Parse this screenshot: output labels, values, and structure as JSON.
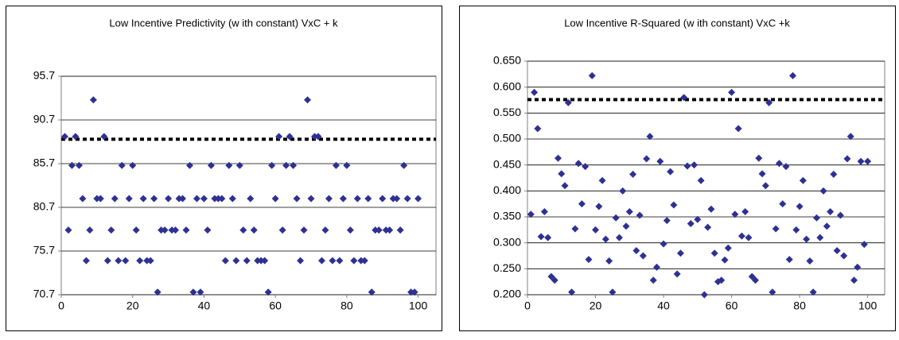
{
  "chart_data": [
    {
      "type": "scatter",
      "title": "Low  Incentive Predictivity (w ith constant) VxC + k",
      "color": "#2e3192",
      "reference_line": 88.5,
      "reference_color": "#000000",
      "grid": true,
      "xlim": [
        0,
        105
      ],
      "xticks": [
        0,
        20,
        40,
        60,
        80,
        100
      ],
      "ylim": [
        70.7,
        95.7
      ],
      "yticks": [
        70.7,
        75.7,
        80.7,
        85.7,
        90.7,
        95.7
      ],
      "x": [
        1,
        2,
        3,
        4,
        5,
        6,
        7,
        8,
        9,
        10,
        11,
        12,
        13,
        14,
        15,
        16,
        17,
        18,
        19,
        20,
        21,
        22,
        23,
        24,
        25,
        26,
        27,
        28,
        29,
        30,
        31,
        32,
        33,
        34,
        35,
        36,
        37,
        38,
        39,
        40,
        41,
        42,
        43,
        44,
        45,
        46,
        47,
        48,
        49,
        50,
        51,
        52,
        53,
        54,
        55,
        56,
        57,
        58,
        59,
        60,
        61,
        62,
        63,
        64,
        65,
        66,
        67,
        68,
        69,
        70,
        71,
        72,
        73,
        74,
        75,
        76,
        77,
        78,
        79,
        80,
        81,
        82,
        83,
        84,
        85,
        86,
        87,
        88,
        89,
        90,
        91,
        92,
        93,
        94,
        95,
        96,
        97,
        98,
        99,
        100
      ],
      "values": [
        88.8,
        78.1,
        85.5,
        88.8,
        85.5,
        81.7,
        74.6,
        78.1,
        93.0,
        81.7,
        81.7,
        88.8,
        74.6,
        78.1,
        81.7,
        74.6,
        85.5,
        74.6,
        81.7,
        85.5,
        78.1,
        74.6,
        81.7,
        74.6,
        74.6,
        81.7,
        71.0,
        78.1,
        78.1,
        81.7,
        78.1,
        78.1,
        81.7,
        81.7,
        78.1,
        85.5,
        71.0,
        81.7,
        71.0,
        81.7,
        78.1,
        85.5,
        81.7,
        81.7,
        81.7,
        74.6,
        85.5,
        81.7,
        74.6,
        85.5,
        78.1,
        74.6,
        81.7,
        78.1,
        74.6,
        74.6,
        74.6,
        71.0,
        85.5,
        81.7,
        88.8,
        78.1,
        85.5,
        88.8,
        85.5,
        81.7,
        74.6,
        78.1,
        93.0,
        81.7,
        88.8,
        88.8,
        74.6,
        78.1,
        81.7,
        74.6,
        85.5,
        74.6,
        81.7,
        85.5,
        78.1,
        74.6,
        81.7,
        74.6,
        74.6,
        81.7,
        71.0,
        78.1,
        78.1,
        81.7,
        78.1,
        78.1,
        81.7,
        81.7,
        78.1,
        85.5,
        81.7,
        71.0,
        71.0,
        81.7
      ]
    },
    {
      "type": "scatter",
      "title": "Low  Incentive R-Squared (w ith constant) VxC +k",
      "color": "#2e3192",
      "reference_line": 0.576,
      "reference_color": "#000000",
      "grid": true,
      "xlim": [
        0,
        105
      ],
      "xticks": [
        0,
        20,
        40,
        60,
        80,
        100
      ],
      "ylim": [
        0.2,
        0.65
      ],
      "yticks": [
        {
          "value": 0.2,
          "label": "0.200"
        },
        {
          "value": 0.25,
          "label": "0.250"
        },
        {
          "value": 0.3,
          "label": "0.300"
        },
        {
          "value": 0.35,
          "label": "0.350"
        },
        {
          "value": 0.4,
          "label": "0.400"
        },
        {
          "value": 0.45,
          "label": "0.450"
        },
        {
          "value": 0.5,
          "label": "0.500"
        },
        {
          "value": 0.55,
          "label": "0.550"
        },
        {
          "value": 0.6,
          "label": "0.600"
        },
        {
          "value": 0.65,
          "label": "0.650"
        }
      ],
      "x": [
        1,
        2,
        3,
        4,
        5,
        6,
        7,
        8,
        9,
        10,
        11,
        12,
        13,
        14,
        15,
        16,
        17,
        18,
        19,
        20,
        21,
        22,
        23,
        24,
        25,
        26,
        27,
        28,
        29,
        30,
        31,
        32,
        33,
        34,
        35,
        36,
        37,
        38,
        39,
        40,
        41,
        42,
        43,
        44,
        45,
        46,
        47,
        48,
        49,
        50,
        51,
        52,
        53,
        54,
        55,
        56,
        57,
        58,
        59,
        60,
        61,
        62,
        63,
        64,
        65,
        66,
        67,
        68,
        69,
        70,
        71,
        72,
        73,
        74,
        75,
        76,
        77,
        78,
        79,
        80,
        81,
        82,
        83,
        84,
        85,
        86,
        87,
        88,
        89,
        90,
        91,
        92,
        93,
        94,
        95,
        96,
        97,
        98,
        99,
        100
      ],
      "values": [
        0.355,
        0.59,
        0.52,
        0.312,
        0.36,
        0.31,
        0.235,
        0.228,
        0.463,
        0.433,
        0.41,
        0.57,
        0.205,
        0.327,
        0.453,
        0.375,
        0.447,
        0.268,
        0.622,
        0.325,
        0.37,
        0.42,
        0.307,
        0.265,
        0.205,
        0.348,
        0.31,
        0.4,
        0.332,
        0.36,
        0.432,
        0.285,
        0.353,
        0.275,
        0.462,
        0.505,
        0.228,
        0.253,
        0.457,
        0.298,
        0.343,
        0.437,
        0.373,
        0.24,
        0.28,
        0.58,
        0.448,
        0.337,
        0.45,
        0.345,
        0.42,
        0.2,
        0.33,
        0.365,
        0.28,
        0.225,
        0.228,
        0.267,
        0.29,
        0.59,
        0.355,
        0.52,
        0.313,
        0.36,
        0.31,
        0.235,
        0.228,
        0.463,
        0.433,
        0.41,
        0.57,
        0.205,
        0.327,
        0.453,
        0.375,
        0.447,
        0.268,
        0.622,
        0.325,
        0.37,
        0.42,
        0.307,
        0.265,
        0.205,
        0.348,
        0.31,
        0.4,
        0.332,
        0.36,
        0.432,
        0.285,
        0.353,
        0.275,
        0.462,
        0.505,
        0.228,
        0.253,
        0.457,
        0.297,
        0.457
      ]
    }
  ]
}
